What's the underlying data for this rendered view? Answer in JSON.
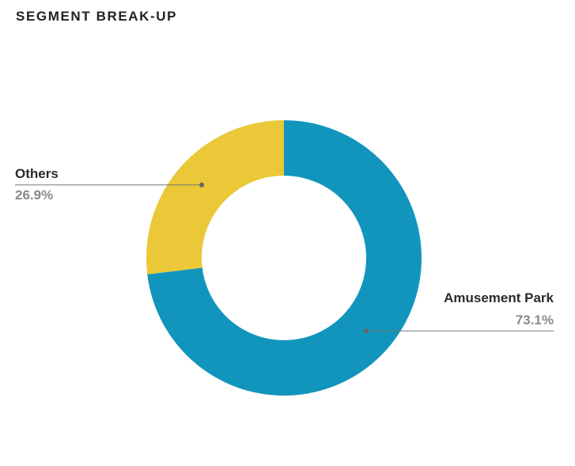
{
  "chart_data": {
    "type": "pie",
    "title": "SEGMENT BREAK-UP",
    "donut": true,
    "categories": [
      "Amusement Park",
      "Others"
    ],
    "values": [
      73.1,
      26.9
    ],
    "value_labels": [
      "73.1%",
      "26.9%"
    ],
    "colors": [
      "#1195bd",
      "#eac837"
    ],
    "legend": "none"
  }
}
